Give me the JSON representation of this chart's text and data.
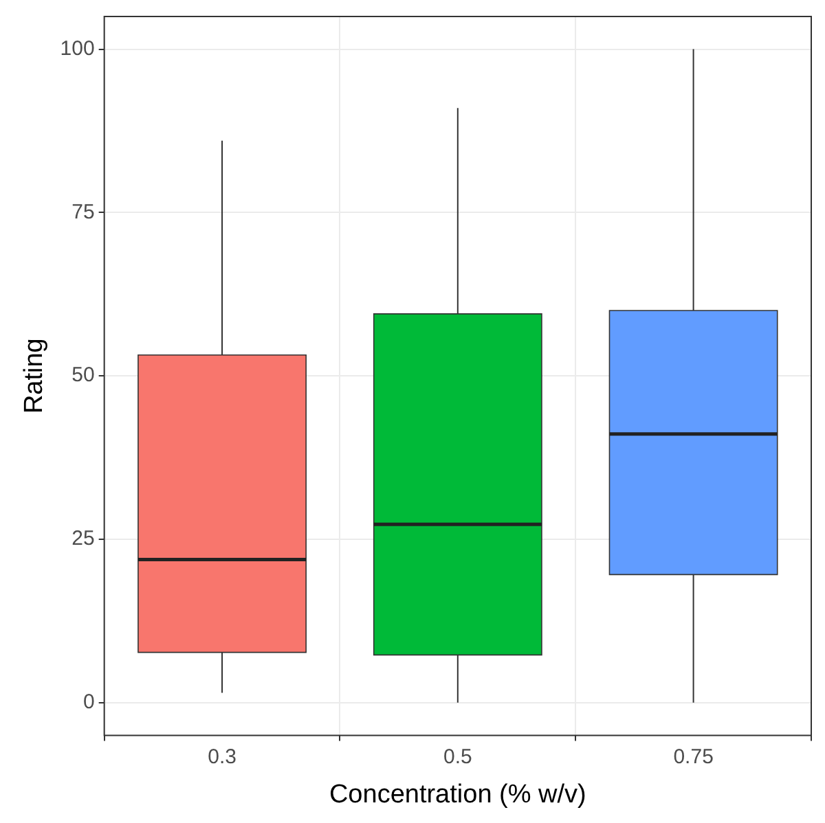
{
  "chart_data": {
    "type": "box",
    "xlabel": "Concentration (% w/v)",
    "ylabel": "Rating",
    "categories": [
      "0.3",
      "0.5",
      "0.75"
    ],
    "colors": [
      "#f8766d",
      "#00ba38",
      "#619cff"
    ],
    "boxes": [
      {
        "low": 1.5,
        "q1": 7.7,
        "median": 21.9,
        "q3": 53.2,
        "high": 86
      },
      {
        "low": 0,
        "q1": 7.3,
        "median": 27.3,
        "q3": 59.5,
        "high": 91
      },
      {
        "low": 0,
        "q1": 19.6,
        "median": 41.1,
        "q3": 60,
        "high": 100
      }
    ],
    "ylim": [
      -5,
      105
    ],
    "yticks": [
      0,
      25,
      50,
      75,
      100
    ],
    "grid": true,
    "legend": false
  }
}
